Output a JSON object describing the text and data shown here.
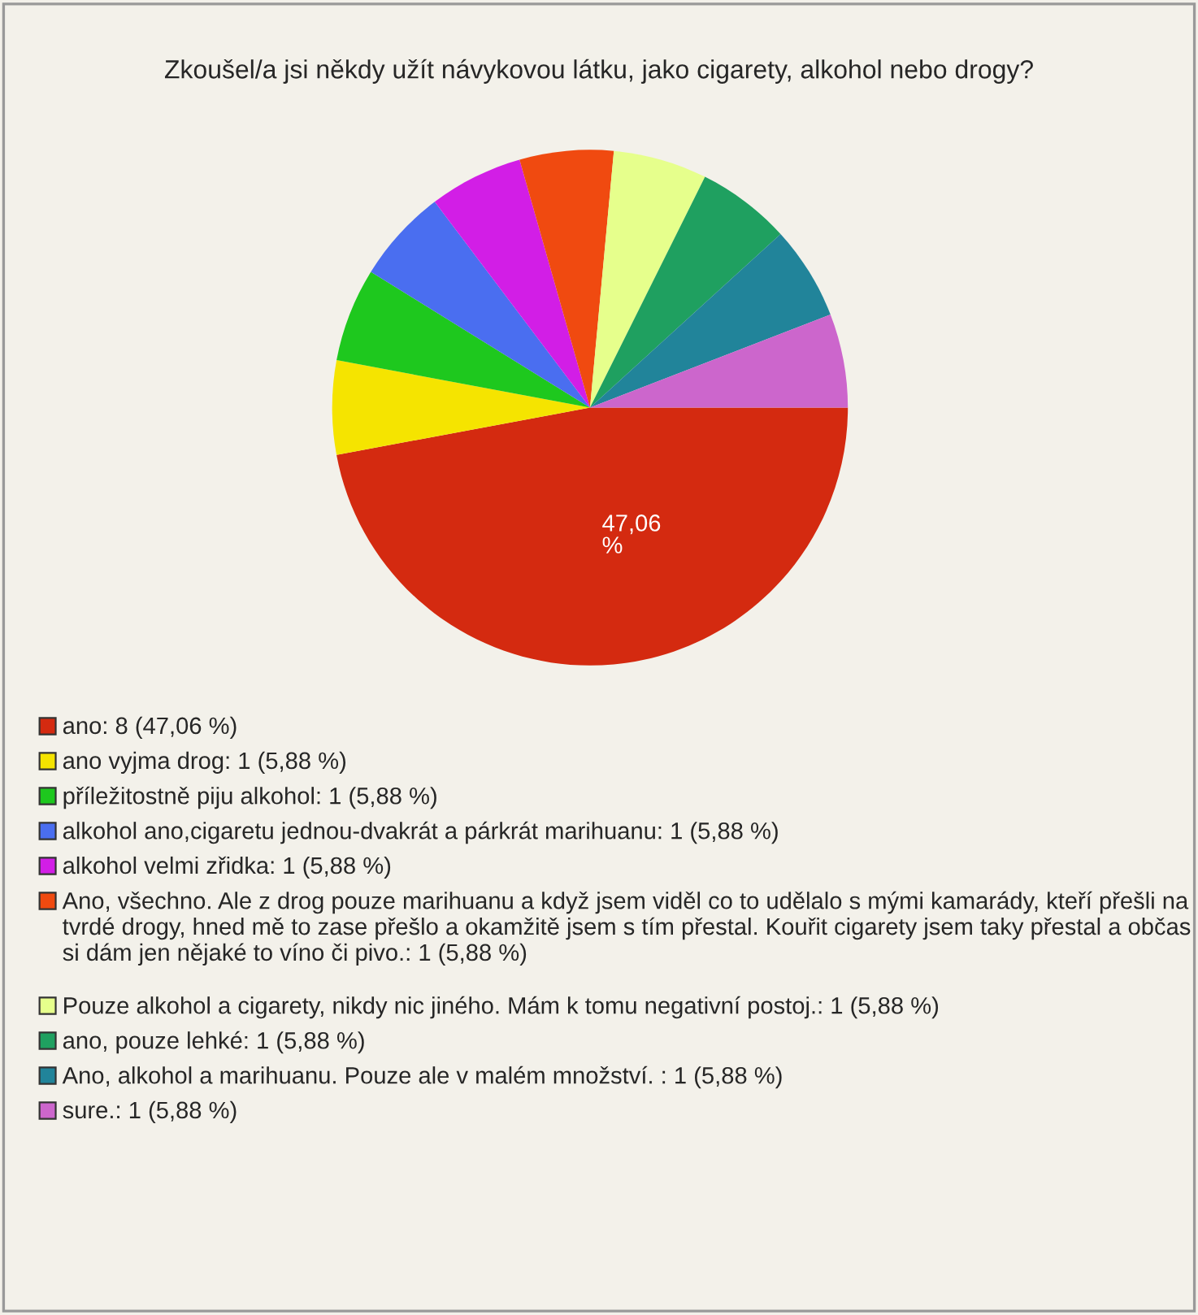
{
  "chart_data": {
    "type": "pie",
    "title": "Zkoušel/a jsi někdy užít návykovou látku, jako cigarety, alkohol nebo drogy?",
    "categories": [
      "ano: 8 (47,06 %)",
      "ano vyjma drog: 1 (5,88 %)",
      "příležitostně piju alkohol: 1 (5,88 %)",
      "alkohol ano,cigaretu jednou-dvakrát a párkrát marihuanu: 1 (5,88 %)",
      "alkohol velmi zřidka: 1 (5,88 %)",
      "Ano, všechno. Ale z drog pouze marihuanu a když jsem viděl co to udělalo s mými kamarády, kteří přešli na tvrdé drogy, hned mě to zase přešlo a okamžitě jsem s tím přestal. Kouřit cigarety jsem taky přestal a občas si dám jen nějaké to víno či pivo.: 1 (5,88 %)",
      "Pouze alkohol a cigarety, nikdy nic jiného. Mám k tomu negativní postoj.: 1 (5,88 %)",
      "ano, pouze lehké: 1 (5,88 %)",
      "Ano, alkohol a marihuanu. Pouze ale v malém množství. : 1 (5,88 %)",
      "sure.: 1 (5,88 %)"
    ],
    "values": [
      47.06,
      5.88,
      5.88,
      5.88,
      5.88,
      5.88,
      5.88,
      5.88,
      5.88,
      5.88
    ],
    "colors": [
      "#d42a10",
      "#f5e400",
      "#1ec81e",
      "#4a6ef0",
      "#d21ee6",
      "#f04a10",
      "#e6ff8c",
      "#1fa060",
      "#21849a",
      "#cc66cc"
    ],
    "value_labels": [
      "47,06 %",
      null,
      null,
      null,
      null,
      null,
      null,
      null,
      null,
      null
    ],
    "legend": "bottom"
  }
}
